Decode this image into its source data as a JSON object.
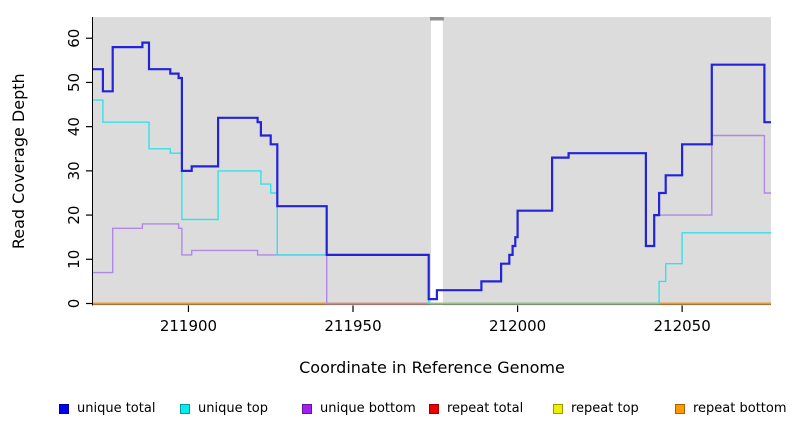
{
  "axes": {
    "xlabel": "Coordinate in Reference Genome",
    "ylabel": "Read Coverage Depth",
    "x_tick_labels": [
      "211900",
      "211950",
      "212000",
      "212050"
    ],
    "y_tick_labels": [
      "0",
      "10",
      "20",
      "30",
      "40",
      "50",
      "60"
    ]
  },
  "legend": {
    "items": [
      {
        "label": "unique total",
        "color": "#0000EE",
        "line_color": "#2323D9"
      },
      {
        "label": "unique top",
        "color": "#00EEEE",
        "line_color": "#35E1E8"
      },
      {
        "label": "unique bottom",
        "color": "#A020F0",
        "line_color": "#B188E6"
      },
      {
        "label": "repeat total",
        "color": "#EE0000",
        "line_color": "#DD2222"
      },
      {
        "label": "repeat top",
        "color": "#EEEE00",
        "line_color": "#E8E83A"
      },
      {
        "label": "repeat bottom",
        "color": "#FF9900",
        "line_color": "#FF9310"
      }
    ]
  },
  "chart_data": {
    "type": "line",
    "step": true,
    "title": "",
    "xlabel": "Coordinate in Reference Genome",
    "ylabel": "Read Coverage Depth",
    "xlim": [
      211871,
      212077
    ],
    "ylim": [
      0,
      64.8
    ],
    "x_ticks": [
      211900,
      211950,
      212000,
      212050
    ],
    "y_ticks": [
      0,
      10,
      20,
      30,
      40,
      50,
      60
    ],
    "grid": false,
    "legend_position": "bottom",
    "plot_bg": "#DCDCDC",
    "masked_region": {
      "from": 211973.7,
      "to": 211977.3,
      "fill": "#FFFFFF",
      "cap_color": "#909090"
    },
    "series": [
      {
        "name": "repeat total",
        "color": "#DD2222",
        "width": 1.2,
        "points": [
          [
            211871,
            0
          ]
        ]
      },
      {
        "name": "repeat top",
        "color": "#E8E83A",
        "width": 1.2,
        "points": [
          [
            211871,
            0
          ]
        ]
      },
      {
        "name": "repeat bottom",
        "color": "#FF9310",
        "width": 1.7,
        "points": [
          [
            211871,
            0
          ]
        ]
      },
      {
        "name": "unique bottom",
        "color": "#B188E6",
        "width": 1.4,
        "points": [
          [
            211871,
            7
          ],
          [
            211877,
            17
          ],
          [
            211886,
            18
          ],
          [
            211897,
            17
          ],
          [
            211898,
            11
          ],
          [
            211901,
            12
          ],
          [
            211921,
            11
          ],
          [
            211942,
            0
          ],
          [
            211973,
            1
          ],
          [
            211975.5,
            3
          ],
          [
            211989,
            5
          ],
          [
            211995,
            9
          ],
          [
            211997.5,
            11
          ],
          [
            211998.5,
            13
          ],
          [
            211999.3,
            15
          ],
          [
            212000,
            21
          ],
          [
            212010.5,
            33
          ],
          [
            212015.5,
            34
          ],
          [
            212039,
            13
          ],
          [
            212041.5,
            20
          ],
          [
            212059,
            38
          ],
          [
            212075,
            25
          ]
        ]
      },
      {
        "name": "unique top",
        "color": "#35E1E8",
        "width": 1.4,
        "points": [
          [
            211871,
            46
          ],
          [
            211874,
            41
          ],
          [
            211888,
            35
          ],
          [
            211894.5,
            34
          ],
          [
            211898,
            19
          ],
          [
            211909,
            30
          ],
          [
            211922,
            27
          ],
          [
            211925,
            25
          ],
          [
            211927,
            11
          ],
          [
            211973,
            0
          ],
          [
            212043,
            5
          ],
          [
            212045,
            9
          ],
          [
            212050,
            16
          ]
        ]
      },
      {
        "name": "unique total",
        "color": "#2323D9",
        "width": 2.2,
        "points": [
          [
            211871,
            53
          ],
          [
            211874,
            48
          ],
          [
            211877,
            58
          ],
          [
            211886,
            59
          ],
          [
            211888,
            53
          ],
          [
            211894.5,
            52
          ],
          [
            211897,
            51
          ],
          [
            211898,
            30
          ],
          [
            211901,
            31
          ],
          [
            211909,
            42
          ],
          [
            211921,
            41
          ],
          [
            211922,
            38
          ],
          [
            211925,
            36
          ],
          [
            211927,
            22
          ],
          [
            211942,
            11
          ],
          [
            211973,
            1
          ],
          [
            211975.5,
            3
          ],
          [
            211989,
            5
          ],
          [
            211995,
            9
          ],
          [
            211997.5,
            11
          ],
          [
            211998.5,
            13
          ],
          [
            211999.3,
            15
          ],
          [
            212000,
            21
          ],
          [
            212010.5,
            33
          ],
          [
            212015.5,
            34
          ],
          [
            212039,
            13
          ],
          [
            212041.5,
            20
          ],
          [
            212043,
            25
          ],
          [
            212045,
            29
          ],
          [
            212050,
            36
          ],
          [
            212059,
            54
          ],
          [
            212075,
            41
          ]
        ]
      }
    ]
  }
}
